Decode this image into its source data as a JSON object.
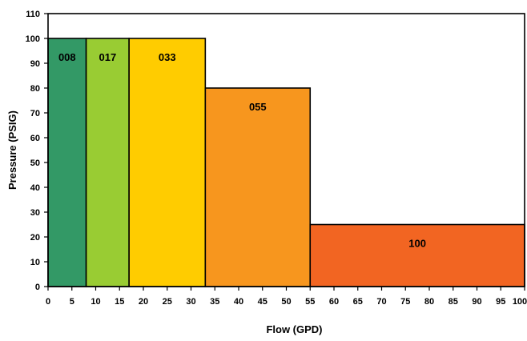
{
  "chart_data": {
    "type": "bar",
    "title": "",
    "xlabel": "Flow (GPD)",
    "ylabel": "Pressure (PSIG)",
    "xlim": [
      0,
      100
    ],
    "ylim": [
      0,
      110
    ],
    "x_ticks": [
      "0",
      "5",
      "10",
      "15",
      "20",
      "25",
      "30",
      "35",
      "40",
      "45",
      "50",
      "55",
      "60",
      "65",
      "70",
      "75",
      "80",
      "85",
      "90",
      "95",
      "100"
    ],
    "y_ticks": [
      "0",
      "10",
      "20",
      "30",
      "40",
      "50",
      "60",
      "70",
      "80",
      "90",
      "100",
      "110"
    ],
    "grid": false,
    "legend": "none",
    "bars": [
      {
        "label": "008",
        "x_start": 0,
        "x_end": 8,
        "value": 100,
        "color": "#339966"
      },
      {
        "label": "017",
        "x_start": 8,
        "x_end": 17,
        "value": 100,
        "color": "#99CC33"
      },
      {
        "label": "033",
        "x_start": 17,
        "x_end": 33,
        "value": 100,
        "color": "#FFCC00"
      },
      {
        "label": "055",
        "x_start": 33,
        "x_end": 55,
        "value": 80,
        "color": "#F7961E"
      },
      {
        "label": "100",
        "x_start": 55,
        "x_end": 100,
        "value": 25,
        "color": "#F26522"
      }
    ]
  }
}
